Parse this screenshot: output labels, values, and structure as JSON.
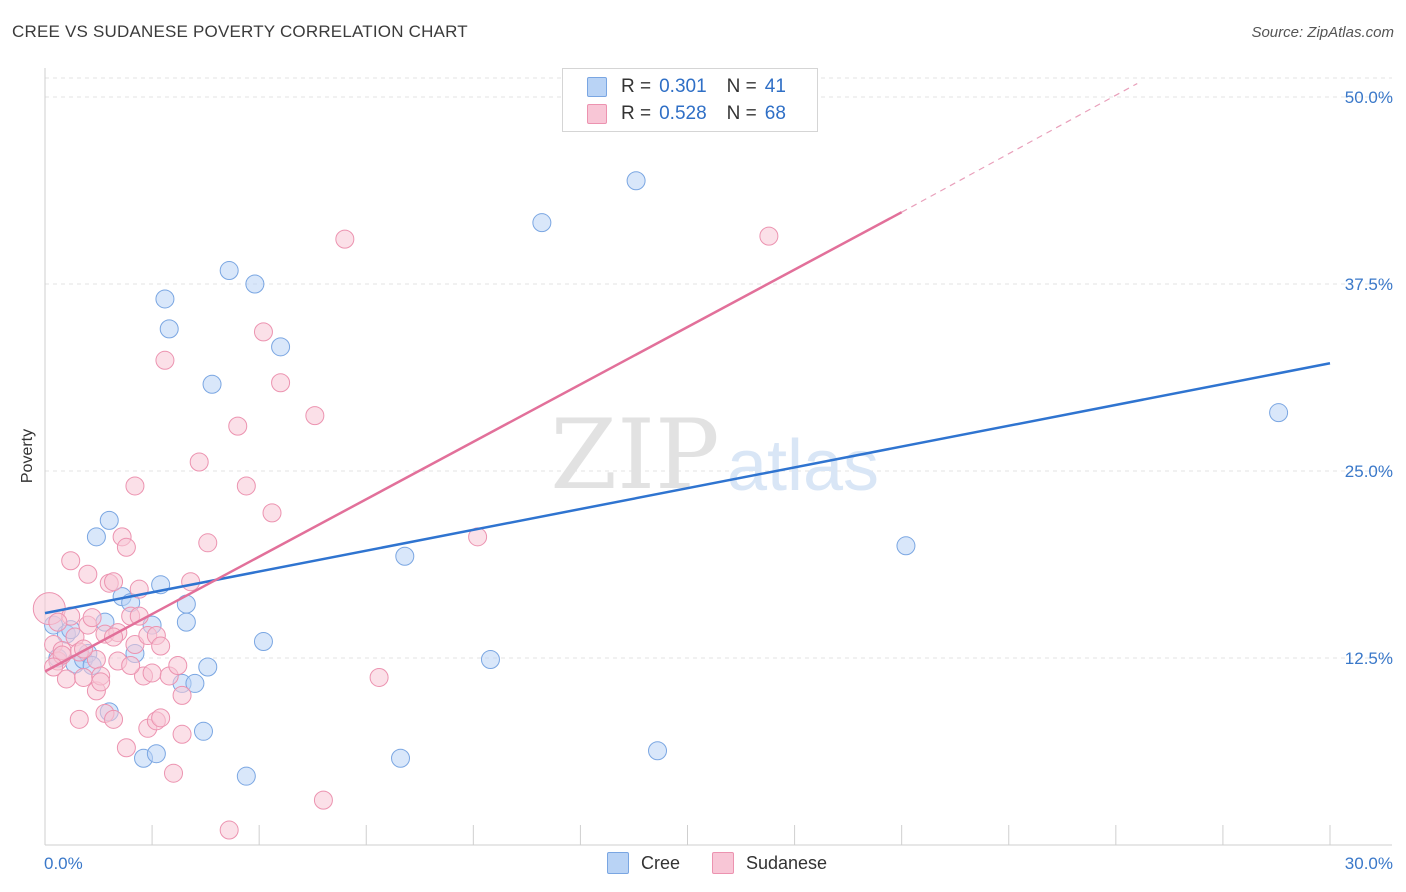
{
  "header": {
    "title": "CREE VS SUDANESE POVERTY CORRELATION CHART",
    "source": "Source: ZipAtlas.com"
  },
  "legend": {
    "series": [
      {
        "r_label": "R =",
        "r_value": "0.301",
        "n_label": "N =",
        "n_value": "41",
        "color": "#b9d3f5"
      },
      {
        "r_label": "R =",
        "r_value": "0.528",
        "n_label": "N =",
        "n_value": "68",
        "color": "#f8c6d6"
      }
    ]
  },
  "watermark": {
    "zip": "ZIP",
    "atlas": "atlas"
  },
  "chart_data": {
    "type": "scatter",
    "title": "CREE VS SUDANESE POVERTY CORRELATION CHART",
    "xlabel": "",
    "ylabel": "Poverty",
    "xlim": [
      0,
      30
    ],
    "ylim": [
      0,
      50
    ],
    "x_tick_labels": [
      "0.0%",
      "30.0%"
    ],
    "y_ticks": [
      12.5,
      25.0,
      37.5,
      50.0
    ],
    "y_tick_labels": [
      "12.5%",
      "25.0%",
      "37.5%",
      "50.0%"
    ],
    "grid": true,
    "legend_position": "bottom",
    "series": [
      {
        "name": "Cree",
        "color": "#7aa6e2",
        "fill": "#b9d3f5",
        "trend": {
          "x0": 0,
          "y0": 15.5,
          "x1": 30,
          "y1": 32.2
        },
        "points": [
          [
            0.2,
            14.7
          ],
          [
            0.5,
            14.1
          ],
          [
            0.7,
            12.1
          ],
          [
            0.9,
            12.4
          ],
          [
            1.0,
            12.8
          ],
          [
            1.2,
            20.6
          ],
          [
            1.4,
            14.9
          ],
          [
            1.5,
            21.7
          ],
          [
            1.5,
            8.9
          ],
          [
            1.8,
            16.6
          ],
          [
            2.0,
            16.2
          ],
          [
            2.1,
            12.8
          ],
          [
            2.3,
            5.8
          ],
          [
            2.5,
            14.7
          ],
          [
            2.6,
            6.1
          ],
          [
            2.7,
            17.4
          ],
          [
            2.8,
            36.5
          ],
          [
            2.9,
            34.5
          ],
          [
            3.2,
            10.8
          ],
          [
            3.3,
            16.1
          ],
          [
            3.3,
            14.9
          ],
          [
            3.5,
            10.8
          ],
          [
            3.7,
            7.6
          ],
          [
            3.8,
            11.9
          ],
          [
            3.9,
            30.8
          ],
          [
            4.3,
            38.4
          ],
          [
            4.7,
            4.6
          ],
          [
            4.9,
            37.5
          ],
          [
            5.1,
            13.6
          ],
          [
            5.5,
            33.3
          ],
          [
            8.3,
            5.8
          ],
          [
            8.4,
            19.3
          ],
          [
            10.4,
            12.4
          ],
          [
            11.6,
            41.6
          ],
          [
            13.8,
            44.4
          ],
          [
            14.3,
            6.3
          ],
          [
            20.1,
            20.0
          ],
          [
            28.8,
            28.9
          ],
          [
            0.3,
            12.5
          ],
          [
            0.6,
            14.4
          ],
          [
            1.1,
            12.0
          ]
        ]
      },
      {
        "name": "Sudanese",
        "color": "#ec93b0",
        "fill": "#f8c6d6",
        "trend": {
          "x0": 0,
          "y0": 11.6,
          "x1": 20.0,
          "y1": 42.3
        },
        "trend_dashed": {
          "x0": 20.0,
          "y0": 42.3,
          "x1": 25.5,
          "y1": 50.9
        },
        "points": [
          [
            0.1,
            15.8
          ],
          [
            0.2,
            13.4
          ],
          [
            0.3,
            12.3
          ],
          [
            0.4,
            13.0
          ],
          [
            0.5,
            11.1
          ],
          [
            0.6,
            15.3
          ],
          [
            0.6,
            19.0
          ],
          [
            0.7,
            13.9
          ],
          [
            0.8,
            12.9
          ],
          [
            0.8,
            8.4
          ],
          [
            0.9,
            11.2
          ],
          [
            1.0,
            18.1
          ],
          [
            1.0,
            14.7
          ],
          [
            1.1,
            15.2
          ],
          [
            1.2,
            12.4
          ],
          [
            1.2,
            10.3
          ],
          [
            1.3,
            11.3
          ],
          [
            1.4,
            8.8
          ],
          [
            1.4,
            14.1
          ],
          [
            1.5,
            17.5
          ],
          [
            1.6,
            8.4
          ],
          [
            1.6,
            17.6
          ],
          [
            1.7,
            14.2
          ],
          [
            1.7,
            12.3
          ],
          [
            1.8,
            20.6
          ],
          [
            1.9,
            19.9
          ],
          [
            1.9,
            6.5
          ],
          [
            2.0,
            15.3
          ],
          [
            2.1,
            13.4
          ],
          [
            2.1,
            24.0
          ],
          [
            2.2,
            15.3
          ],
          [
            2.2,
            17.1
          ],
          [
            2.3,
            11.3
          ],
          [
            2.4,
            14.0
          ],
          [
            2.4,
            7.8
          ],
          [
            2.5,
            11.5
          ],
          [
            2.6,
            8.3
          ],
          [
            2.6,
            14.0
          ],
          [
            2.7,
            8.5
          ],
          [
            2.8,
            32.4
          ],
          [
            2.9,
            11.3
          ],
          [
            3.0,
            4.8
          ],
          [
            3.2,
            7.4
          ],
          [
            3.2,
            10.0
          ],
          [
            3.4,
            17.6
          ],
          [
            3.6,
            25.6
          ],
          [
            3.8,
            20.2
          ],
          [
            4.3,
            1.0
          ],
          [
            4.5,
            28.0
          ],
          [
            4.7,
            24.0
          ],
          [
            5.1,
            34.3
          ],
          [
            5.3,
            22.2
          ],
          [
            5.5,
            30.9
          ],
          [
            6.3,
            28.7
          ],
          [
            6.5,
            3.0
          ],
          [
            7.0,
            40.5
          ],
          [
            7.8,
            11.2
          ],
          [
            10.1,
            20.6
          ],
          [
            16.9,
            40.7
          ],
          [
            0.3,
            14.9
          ],
          [
            0.4,
            12.7
          ],
          [
            0.9,
            13.1
          ],
          [
            1.3,
            10.9
          ],
          [
            2.0,
            12.0
          ],
          [
            0.2,
            11.9
          ],
          [
            3.1,
            12.0
          ],
          [
            1.6,
            13.9
          ],
          [
            2.7,
            13.3
          ]
        ]
      }
    ]
  }
}
